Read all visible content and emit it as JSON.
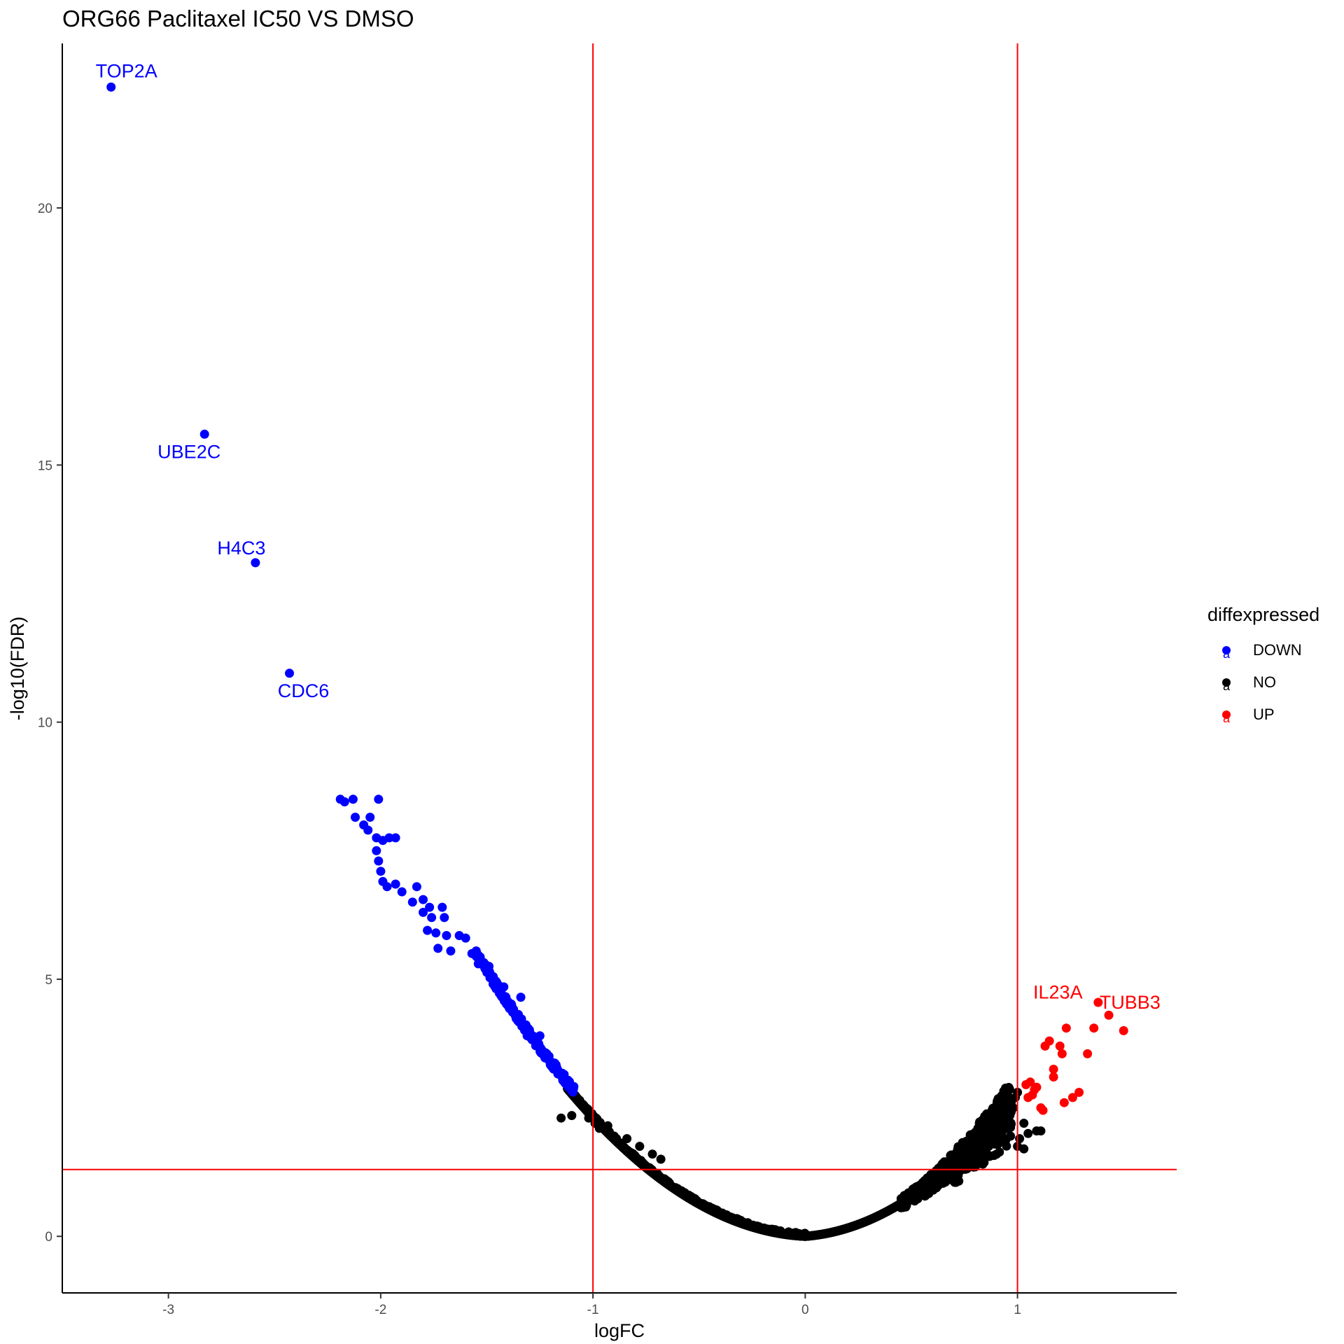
{
  "chart_data": {
    "type": "scatter",
    "title": "ORG66 Paclitaxel IC50 VS DMSO",
    "xlabel": "logFC",
    "ylabel": "-log10(FDR)",
    "xlim": [
      -3.5,
      1.75
    ],
    "ylim": [
      -1.1,
      23.2
    ],
    "x_ticks": [
      -3,
      -2,
      -1,
      0,
      1
    ],
    "x_tick_labels": [
      "-3",
      "-2",
      "-1",
      "0",
      "1"
    ],
    "y_ticks": [
      0,
      5,
      10,
      15,
      20
    ],
    "y_tick_labels": [
      "0",
      "5",
      "10",
      "15",
      "20"
    ],
    "grid": false,
    "thresholds": {
      "logFC": [
        -1,
        1
      ],
      "neg_log10_fdr": 1.3,
      "color": "#ff0000"
    },
    "legend": {
      "title": "diffexpressed",
      "placement": "right",
      "glyph": "a",
      "items": [
        {
          "label": "DOWN",
          "color": "#0000ff"
        },
        {
          "label": "NO",
          "color": "#000000"
        },
        {
          "label": "UP",
          "color": "#ff0000"
        }
      ]
    },
    "series": [
      {
        "name": "DOWN",
        "color": "#0000ff",
        "points": [
          [
            -3.27,
            22.35
          ],
          [
            -2.83,
            15.6
          ],
          [
            -2.59,
            13.1
          ],
          [
            -2.43,
            10.95
          ],
          [
            -2.19,
            8.5
          ],
          [
            -2.17,
            8.45
          ],
          [
            -2.13,
            8.5
          ],
          [
            -2.01,
            8.5
          ],
          [
            -2.05,
            8.15
          ],
          [
            -2.12,
            8.15
          ],
          [
            -2.08,
            8.0
          ],
          [
            -2.06,
            7.9
          ],
          [
            -2.02,
            7.75
          ],
          [
            -1.99,
            7.7
          ],
          [
            -1.96,
            7.75
          ],
          [
            -1.93,
            7.75
          ],
          [
            -2.02,
            7.5
          ],
          [
            -2.01,
            7.3
          ],
          [
            -2.0,
            7.1
          ],
          [
            -1.99,
            6.9
          ],
          [
            -1.97,
            6.8
          ],
          [
            -1.93,
            6.85
          ],
          [
            -1.9,
            6.7
          ],
          [
            -1.83,
            6.8
          ],
          [
            -1.85,
            6.5
          ],
          [
            -1.8,
            6.55
          ],
          [
            -1.77,
            6.4
          ],
          [
            -1.71,
            6.4
          ],
          [
            -1.8,
            6.3
          ],
          [
            -1.76,
            6.2
          ],
          [
            -1.7,
            6.2
          ],
          [
            -1.63,
            5.85
          ],
          [
            -1.78,
            5.95
          ],
          [
            -1.74,
            5.9
          ],
          [
            -1.69,
            5.85
          ],
          [
            -1.73,
            5.6
          ],
          [
            -1.67,
            5.55
          ],
          [
            -1.6,
            5.8
          ],
          [
            -1.57,
            5.5
          ],
          [
            -1.54,
            5.3
          ],
          [
            -1.55,
            5.55
          ],
          [
            -1.49,
            5.25
          ],
          [
            -1.47,
            5.05
          ],
          [
            -1.42,
            4.85
          ],
          [
            -1.34,
            4.65
          ],
          [
            -1.35,
            4.25
          ],
          [
            -1.31,
            3.9
          ],
          [
            -1.25,
            3.9
          ]
        ]
      },
      {
        "name": "UP",
        "color": "#ff0000",
        "points": [
          [
            1.38,
            4.55
          ],
          [
            1.43,
            4.3
          ],
          [
            1.36,
            4.05
          ],
          [
            1.5,
            4.0
          ],
          [
            1.23,
            4.05
          ],
          [
            1.15,
            3.8
          ],
          [
            1.13,
            3.7
          ],
          [
            1.2,
            3.7
          ],
          [
            1.21,
            3.55
          ],
          [
            1.33,
            3.55
          ],
          [
            1.17,
            3.25
          ],
          [
            1.17,
            3.1
          ],
          [
            1.04,
            2.95
          ],
          [
            1.06,
            3.0
          ],
          [
            1.09,
            2.9
          ],
          [
            1.05,
            2.7
          ],
          [
            1.07,
            2.75
          ],
          [
            1.08,
            2.85
          ],
          [
            1.29,
            2.8
          ],
          [
            1.26,
            2.7
          ],
          [
            1.22,
            2.6
          ],
          [
            1.11,
            2.5
          ],
          [
            1.12,
            2.45
          ]
        ]
      }
    ],
    "annotations": [
      {
        "text": "TOP2A",
        "x": -3.27,
        "y": 22.35,
        "series": "DOWN"
      },
      {
        "text": "UBE2C",
        "x": -2.83,
        "y": 15.6,
        "series": "DOWN"
      },
      {
        "text": "H4C3",
        "x": -2.59,
        "y": 13.1,
        "series": "DOWN"
      },
      {
        "text": "CDC6",
        "x": -2.43,
        "y": 10.95,
        "series": "DOWN"
      },
      {
        "text": "IL23A",
        "x": 1.23,
        "y": 4.05,
        "series": "UP"
      },
      {
        "text": "TUBB3",
        "x": 1.38,
        "y": 4.55,
        "series": "UP"
      }
    ]
  }
}
